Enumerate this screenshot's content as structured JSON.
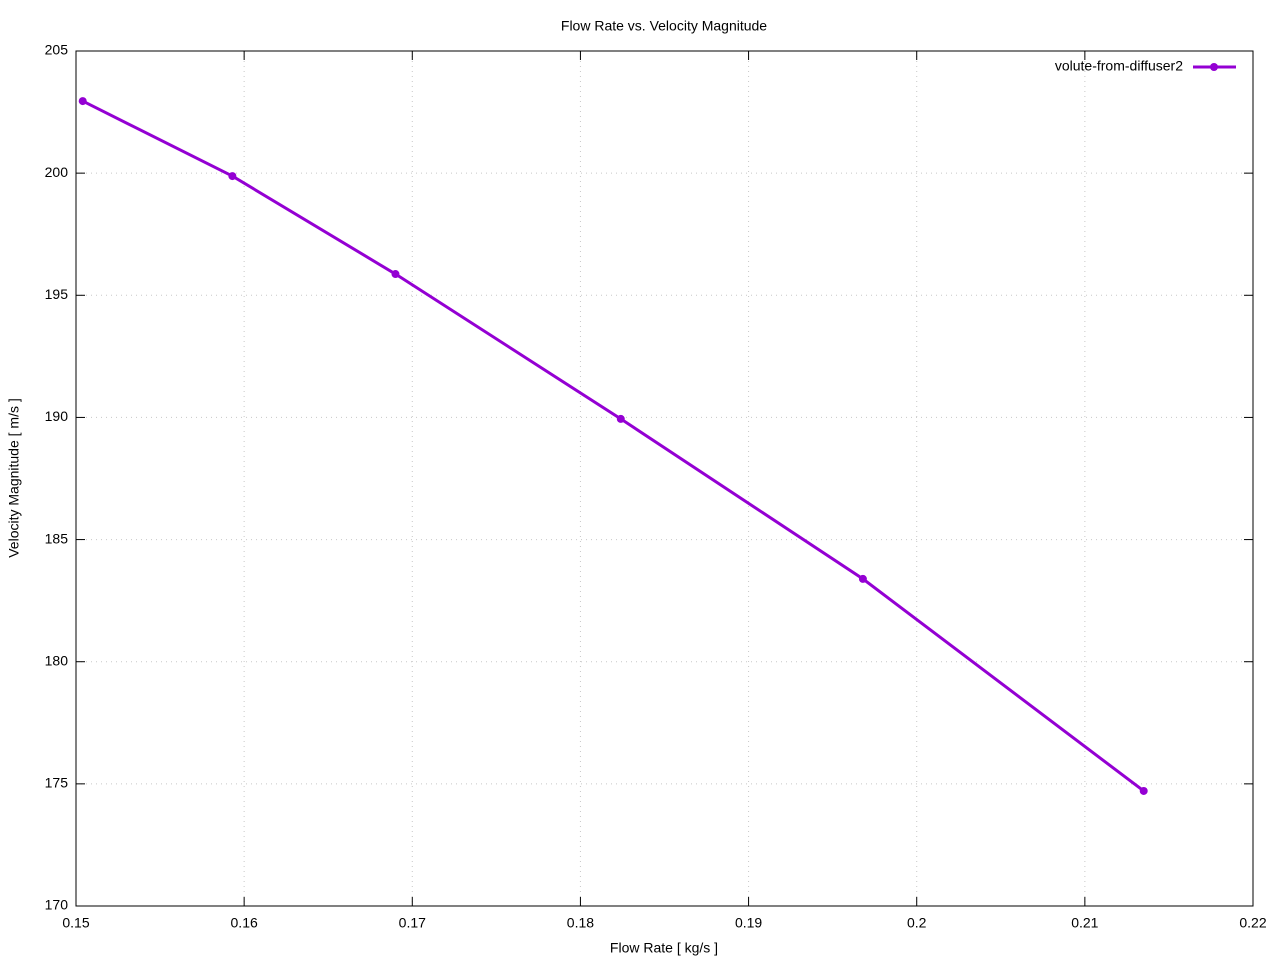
{
  "chart_data": {
    "type": "line",
    "title": "Flow Rate vs. Velocity Magnitude",
    "xlabel": "Flow Rate [ kg/s ]",
    "ylabel": "Velocity Magnitude [ m/s ]",
    "x": [
      0.1504,
      0.1593,
      0.169,
      0.1824,
      0.1968,
      0.2135
    ],
    "series": [
      {
        "name": "volute-from-diffuser2",
        "color": "#9400d3",
        "values": [
          202.95,
          199.88,
          195.87,
          189.94,
          183.39,
          174.71
        ]
      }
    ],
    "xlim": [
      0.15,
      0.22
    ],
    "xticks": [
      0.15,
      0.16,
      0.17,
      0.18,
      0.19,
      0.2,
      0.21,
      0.22
    ],
    "ylim": [
      170,
      205
    ],
    "yticks": [
      170,
      175,
      180,
      185,
      190,
      195,
      200,
      205
    ],
    "grid": true,
    "legend": "top-right"
  }
}
